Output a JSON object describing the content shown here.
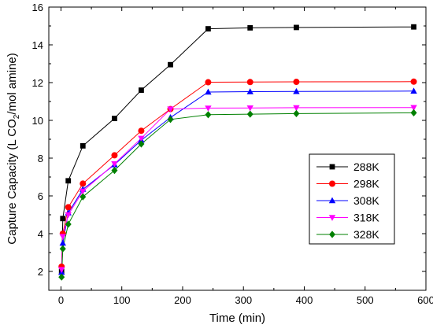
{
  "chart_data": {
    "type": "line",
    "title": "",
    "xlabel": "Time (min)",
    "ylabel_parts": [
      "Capture Capacity (L CO",
      "2",
      "/mol amine)"
    ],
    "xlim": [
      -20,
      600
    ],
    "ylim": [
      1,
      16
    ],
    "xticks": [
      0,
      100,
      200,
      300,
      400,
      500,
      600
    ],
    "yticks": [
      2,
      4,
      6,
      8,
      10,
      12,
      14,
      16
    ],
    "grid": false,
    "legend_position": "center-right",
    "series": [
      {
        "name": "288K",
        "color": "#000000",
        "marker": "square",
        "x": [
          1,
          3,
          12,
          36,
          88,
          132,
          180,
          242,
          311,
          387,
          580
        ],
        "y": [
          2.0,
          4.8,
          6.8,
          8.65,
          10.1,
          11.6,
          12.95,
          14.85,
          14.9,
          14.92,
          14.95
        ]
      },
      {
        "name": "298K",
        "color": "#ff0000",
        "marker": "circle",
        "x": [
          1,
          3,
          12,
          36,
          88,
          132,
          180,
          242,
          311,
          387,
          580
        ],
        "y": [
          2.25,
          4.0,
          5.4,
          6.65,
          8.15,
          9.45,
          10.6,
          12.02,
          12.03,
          12.04,
          12.05
        ]
      },
      {
        "name": "308K",
        "color": "#0000ff",
        "marker": "triangle-up",
        "x": [
          1,
          3,
          12,
          36,
          88,
          132,
          180,
          242,
          311,
          387,
          580
        ],
        "y": [
          1.95,
          3.5,
          5.1,
          6.35,
          7.65,
          8.95,
          10.15,
          11.5,
          11.52,
          11.53,
          11.55
        ]
      },
      {
        "name": "318K",
        "color": "#ff00ff",
        "marker": "triangle-down",
        "x": [
          1,
          3,
          12,
          36,
          88,
          132,
          180,
          242,
          311,
          387,
          580
        ],
        "y": [
          2.1,
          3.85,
          5.0,
          6.25,
          7.7,
          9.05,
          10.6,
          10.65,
          10.66,
          10.67,
          10.68
        ]
      },
      {
        "name": "328K",
        "color": "#008000",
        "marker": "diamond",
        "x": [
          1,
          3,
          12,
          36,
          88,
          132,
          180,
          242,
          311,
          387,
          580
        ],
        "y": [
          1.7,
          3.2,
          4.5,
          5.95,
          7.35,
          8.75,
          10.05,
          10.3,
          10.33,
          10.36,
          10.4
        ]
      }
    ]
  }
}
